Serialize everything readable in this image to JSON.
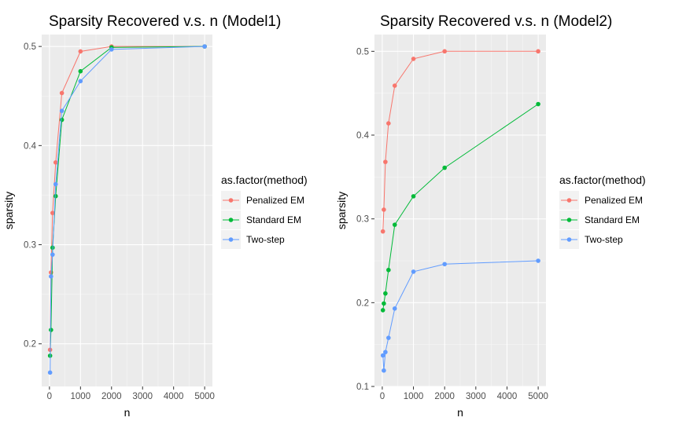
{
  "chart_data": [
    {
      "type": "line",
      "title": "Sparsity Recovered v.s. n (Model1)",
      "xlabel": "n",
      "ylabel": "sparsity",
      "xlim": [
        -250,
        5250
      ],
      "ylim": [
        0.157,
        0.512
      ],
      "x_ticks": [
        0,
        1000,
        2000,
        3000,
        4000,
        5000
      ],
      "y_ticks": [
        0.2,
        0.3,
        0.4,
        0.5
      ],
      "x_tick_labels": [
        "0",
        "1000",
        "2000",
        "3000",
        "4000",
        "5000"
      ],
      "y_tick_labels": [
        "0.2",
        "0.3",
        "0.4",
        "0.5"
      ],
      "grid": true,
      "legend_title": "as.factor(method)",
      "legend_position": "right",
      "series": [
        {
          "name": "Penalized EM",
          "color": "#F8766D",
          "x": [
            20,
            50,
            100,
            200,
            400,
            1000,
            2000,
            5000
          ],
          "y": [
            0.194,
            0.272,
            0.332,
            0.383,
            0.453,
            0.495,
            0.5,
            0.5
          ]
        },
        {
          "name": "Standard EM",
          "color": "#00BA38",
          "x": [
            20,
            50,
            100,
            200,
            400,
            1000,
            2000,
            5000
          ],
          "y": [
            0.188,
            0.214,
            0.297,
            0.349,
            0.426,
            0.475,
            0.499,
            0.5
          ]
        },
        {
          "name": "Two-step",
          "color": "#619CFF",
          "x": [
            20,
            50,
            100,
            200,
            400,
            1000,
            2000,
            5000
          ],
          "y": [
            0.171,
            0.268,
            0.29,
            0.361,
            0.435,
            0.465,
            0.497,
            0.5
          ]
        }
      ]
    },
    {
      "type": "line",
      "title": "Sparsity Recovered v.s. n (Model2)",
      "xlabel": "n",
      "ylabel": "sparsity",
      "xlim": [
        -250,
        5250
      ],
      "ylim": [
        0.1,
        0.52
      ],
      "x_ticks": [
        0,
        1000,
        2000,
        3000,
        4000,
        5000
      ],
      "y_ticks": [
        0.1,
        0.2,
        0.3,
        0.4,
        0.5
      ],
      "x_tick_labels": [
        "0",
        "1000",
        "2000",
        "3000",
        "4000",
        "5000"
      ],
      "y_tick_labels": [
        "0.1",
        "0.2",
        "0.3",
        "0.4",
        "0.5"
      ],
      "grid": true,
      "legend_title": "as.factor(method)",
      "legend_position": "right",
      "series": [
        {
          "name": "Penalized EM",
          "color": "#F8766D",
          "x": [
            20,
            50,
            100,
            200,
            400,
            1000,
            2000,
            5000
          ],
          "y": [
            0.285,
            0.311,
            0.368,
            0.414,
            0.459,
            0.491,
            0.5,
            0.5
          ]
        },
        {
          "name": "Standard EM",
          "color": "#00BA38",
          "x": [
            20,
            50,
            100,
            200,
            400,
            1000,
            2000,
            5000
          ],
          "y": [
            0.191,
            0.199,
            0.211,
            0.239,
            0.293,
            0.327,
            0.361,
            0.437
          ]
        },
        {
          "name": "Two-step",
          "color": "#619CFF",
          "x": [
            20,
            50,
            100,
            200,
            400,
            1000,
            2000,
            5000
          ],
          "y": [
            0.137,
            0.119,
            0.141,
            0.158,
            0.193,
            0.237,
            0.246,
            0.25
          ]
        }
      ]
    }
  ]
}
